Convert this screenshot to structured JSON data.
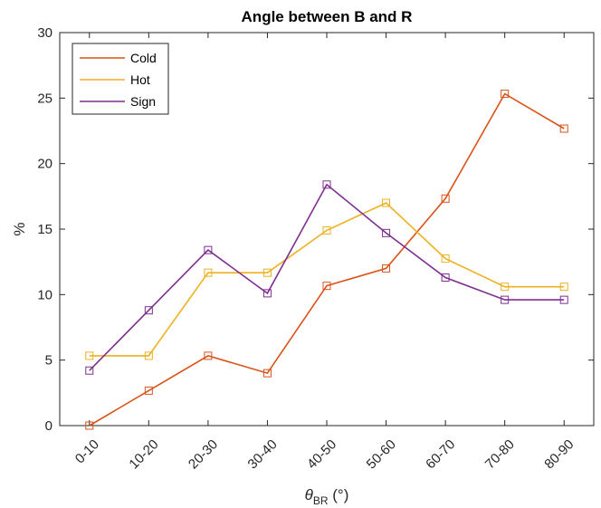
{
  "chart_data": {
    "type": "line",
    "title": "Angle between B and R",
    "xlabel": {
      "symbol": "θ",
      "subscript": "BR",
      "unit": " (°)"
    },
    "ylabel": "%",
    "categories": [
      "0-10",
      "10-20",
      "20-30",
      "30-40",
      "40-50",
      "50-60",
      "60-70",
      "70-80",
      "80-90"
    ],
    "ylim": [
      0,
      30
    ],
    "yticks": [
      0,
      5,
      10,
      15,
      20,
      25,
      30
    ],
    "grid": false,
    "marker": "square",
    "legend_position": "top-left",
    "series": [
      {
        "name": "Cold",
        "color": "#D95319",
        "values": [
          0,
          2.67,
          5.33,
          4.0,
          10.67,
          12.0,
          17.33,
          25.33,
          22.67
        ]
      },
      {
        "name": "Hot",
        "color": "#EDB120",
        "values": [
          5.33,
          5.33,
          11.67,
          11.67,
          14.9,
          17.0,
          12.75,
          10.6,
          10.6
        ]
      },
      {
        "name": "Sign",
        "color": "#7E2F8E",
        "values": [
          4.2,
          8.8,
          13.4,
          10.1,
          18.4,
          14.7,
          11.3,
          9.6,
          9.6
        ]
      }
    ]
  }
}
